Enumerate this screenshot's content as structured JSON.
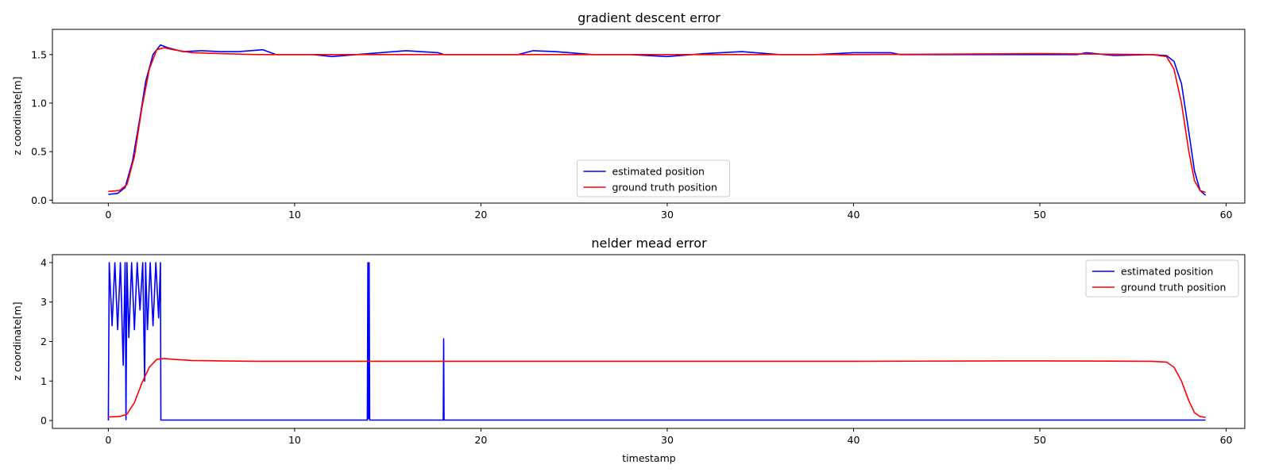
{
  "chart_data": [
    {
      "type": "line",
      "title": "gradient descent error",
      "xlabel": "",
      "ylabel": "z coordinate[m]",
      "xlim": [
        -3,
        61
      ],
      "ylim": [
        -0.03,
        1.76
      ],
      "xticks": [
        0,
        10,
        20,
        30,
        40,
        50,
        60
      ],
      "xtick_labels": [
        "0",
        "10",
        "20",
        "30",
        "40",
        "50",
        "60"
      ],
      "yticks": [
        0.0,
        0.5,
        1.0,
        1.5
      ],
      "ytick_labels": [
        "0.0",
        "0.5",
        "1.0",
        "1.5"
      ],
      "legend_position": "bottom-center",
      "series": [
        {
          "name": "estimated position",
          "color": "#0000ff",
          "x": [
            0,
            0.5,
            0.9,
            1.3,
            1.7,
            2.0,
            2.4,
            2.8,
            3.2,
            4,
            5,
            6,
            7,
            8.3,
            9,
            10,
            11,
            12,
            14,
            16,
            17.7,
            18,
            20,
            22,
            22.8,
            24,
            26,
            27,
            28,
            30,
            32,
            34,
            36,
            38,
            40,
            42,
            42.5,
            44,
            46,
            48,
            50,
            52,
            52.5,
            54,
            56,
            56.8,
            57.2,
            57.6,
            58.0,
            58.3,
            58.6,
            58.9
          ],
          "y": [
            0.06,
            0.07,
            0.13,
            0.4,
            0.85,
            1.22,
            1.5,
            1.6,
            1.57,
            1.53,
            1.54,
            1.53,
            1.53,
            1.55,
            1.5,
            1.5,
            1.5,
            1.48,
            1.51,
            1.54,
            1.52,
            1.5,
            1.5,
            1.5,
            1.54,
            1.53,
            1.5,
            1.5,
            1.5,
            1.48,
            1.51,
            1.53,
            1.5,
            1.5,
            1.52,
            1.52,
            1.5,
            1.5,
            1.5,
            1.5,
            1.5,
            1.5,
            1.52,
            1.49,
            1.5,
            1.49,
            1.43,
            1.2,
            0.7,
            0.3,
            0.1,
            0.05
          ]
        },
        {
          "name": "ground truth position",
          "color": "#ff0000",
          "x": [
            0,
            0.6,
            1.0,
            1.4,
            1.8,
            2.2,
            2.6,
            3.0,
            3.5,
            4.5,
            6,
            8,
            10,
            20,
            30,
            40,
            50,
            56,
            56.8,
            57.2,
            57.6,
            58.0,
            58.3,
            58.6,
            58.9
          ],
          "y": [
            0.09,
            0.1,
            0.16,
            0.45,
            0.95,
            1.35,
            1.55,
            1.57,
            1.55,
            1.52,
            1.51,
            1.5,
            1.5,
            1.5,
            1.5,
            1.5,
            1.51,
            1.5,
            1.48,
            1.35,
            1.0,
            0.5,
            0.2,
            0.1,
            0.08
          ]
        }
      ]
    },
    {
      "type": "line",
      "title": "nelder mead error",
      "xlabel": "timestamp",
      "ylabel": "z coordinate[m]",
      "xlim": [
        -3,
        61
      ],
      "ylim": [
        -0.2,
        4.2
      ],
      "xticks": [
        0,
        10,
        20,
        30,
        40,
        50,
        60
      ],
      "xtick_labels": [
        "0",
        "10",
        "20",
        "30",
        "40",
        "50",
        "60"
      ],
      "yticks": [
        0,
        1,
        2,
        3,
        4
      ],
      "ytick_labels": [
        "0",
        "1",
        "2",
        "3",
        "4"
      ],
      "legend_position": "top-right",
      "series": [
        {
          "name": "estimated position",
          "color": "#0000ff",
          "x": [
            0,
            0.05,
            0.2,
            0.35,
            0.5,
            0.65,
            0.8,
            0.9,
            0.95,
            1.0,
            1.1,
            1.25,
            1.4,
            1.55,
            1.7,
            1.85,
            1.95,
            2.0,
            2.1,
            2.25,
            2.4,
            2.55,
            2.7,
            2.8,
            2.82,
            13.9,
            13.93,
            13.96,
            14.0,
            14.03,
            17.98,
            18.0,
            18.02,
            58.9
          ],
          "y": [
            0,
            4,
            2.4,
            4,
            2.3,
            4,
            1.4,
            4,
            0.02,
            4,
            2.1,
            4,
            2.3,
            4,
            2.8,
            4,
            1.0,
            4,
            2.3,
            4,
            2.4,
            4,
            2.6,
            4,
            0.01,
            0.01,
            4.0,
            0.05,
            4.0,
            0.01,
            0.01,
            2.07,
            0.01,
            0.01
          ]
        },
        {
          "name": "ground truth position",
          "color": "#ff0000",
          "x": [
            0,
            0.6,
            1.0,
            1.4,
            1.8,
            2.2,
            2.6,
            3.0,
            3.5,
            4.5,
            6,
            8,
            10,
            20,
            30,
            40,
            50,
            56,
            56.8,
            57.2,
            57.6,
            58.0,
            58.3,
            58.6,
            58.9
          ],
          "y": [
            0.09,
            0.1,
            0.16,
            0.45,
            0.95,
            1.35,
            1.55,
            1.57,
            1.55,
            1.52,
            1.51,
            1.5,
            1.5,
            1.5,
            1.5,
            1.5,
            1.51,
            1.5,
            1.48,
            1.35,
            1.0,
            0.5,
            0.2,
            0.1,
            0.08
          ]
        }
      ]
    }
  ]
}
